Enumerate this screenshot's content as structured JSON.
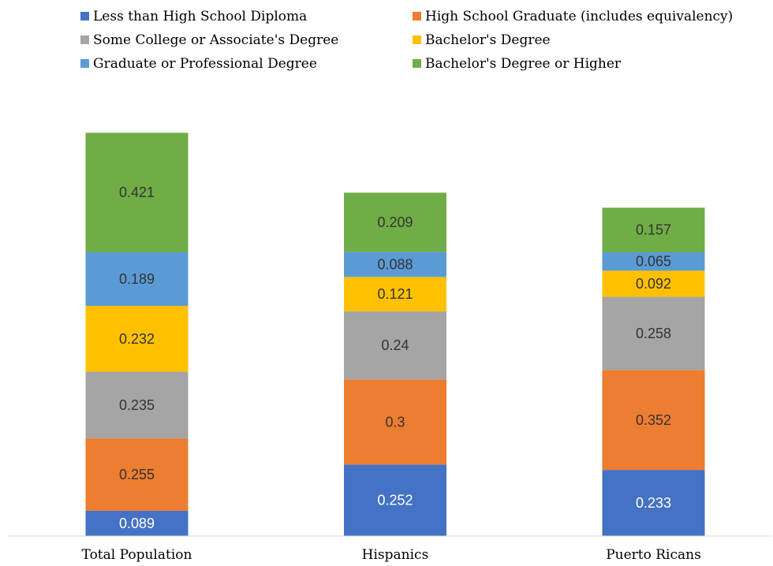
{
  "chart_data": {
    "type": "bar",
    "stacked": true,
    "categories": [
      "Total Population",
      "Hispanics",
      "Puerto Ricans"
    ],
    "series": [
      {
        "name": "Less than High School Diploma",
        "color": "#4472C4",
        "values": [
          0.089,
          0.252,
          0.233
        ]
      },
      {
        "name": "High School Graduate (includes equivalency)",
        "color": "#ED7D31",
        "values": [
          0.255,
          0.3,
          0.352
        ]
      },
      {
        "name": "Some College or Associate's Degree",
        "color": "#A5A5A5",
        "values": [
          0.235,
          0.24,
          0.258
        ]
      },
      {
        "name": "Bachelor's Degree",
        "color": "#FFC000",
        "values": [
          0.232,
          0.121,
          0.092
        ]
      },
      {
        "name": "Graduate or Professional Degree",
        "color": "#5B9BD5",
        "values": [
          0.189,
          0.088,
          0.065
        ]
      },
      {
        "name": "Bachelor's Degree or Higher",
        "color": "#70AD47",
        "values": [
          0.421,
          0.209,
          0.157
        ]
      }
    ],
    "value_label_colors": [
      "#ffffff",
      "#333333",
      "#333333",
      "#333333",
      "#333333",
      "#333333"
    ],
    "legend_position": "top",
    "data_labels": true,
    "grid": false
  }
}
